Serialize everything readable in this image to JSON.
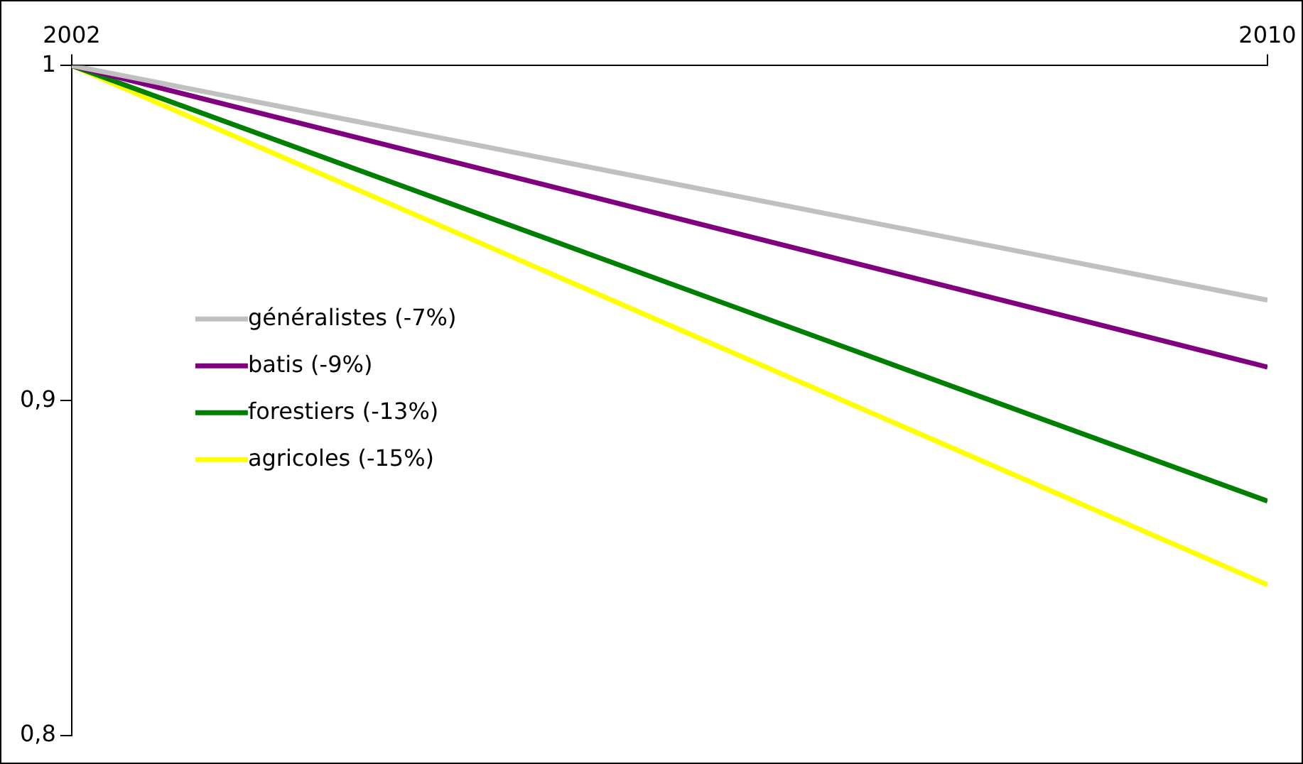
{
  "chart_data": {
    "type": "line",
    "x": [
      2002,
      2010
    ],
    "xlim": [
      2002,
      2010
    ],
    "xticks": [
      2002,
      2010
    ],
    "ylim": [
      0.8,
      1
    ],
    "yticks": [
      {
        "value": 0.8,
        "label": "0,8"
      },
      {
        "value": 0.9,
        "label": "0,9"
      },
      {
        "value": 1,
        "label": "1"
      }
    ],
    "grid": false,
    "legend": "left",
    "marker": "none",
    "line_style": "solid",
    "series": [
      {
        "name": "généralistes (-7%)",
        "color": "#c0c0c0",
        "values": [
          1,
          0.93
        ]
      },
      {
        "name": "batis (-9%)",
        "color": "#800080",
        "values": [
          1,
          0.91
        ]
      },
      {
        "name": "forestiers (-13%)",
        "color": "#008000",
        "values": [
          1,
          0.87
        ]
      },
      {
        "name": "agricoles (-15%)",
        "color": "#ffff00",
        "values": [
          1,
          0.845
        ]
      }
    ]
  }
}
